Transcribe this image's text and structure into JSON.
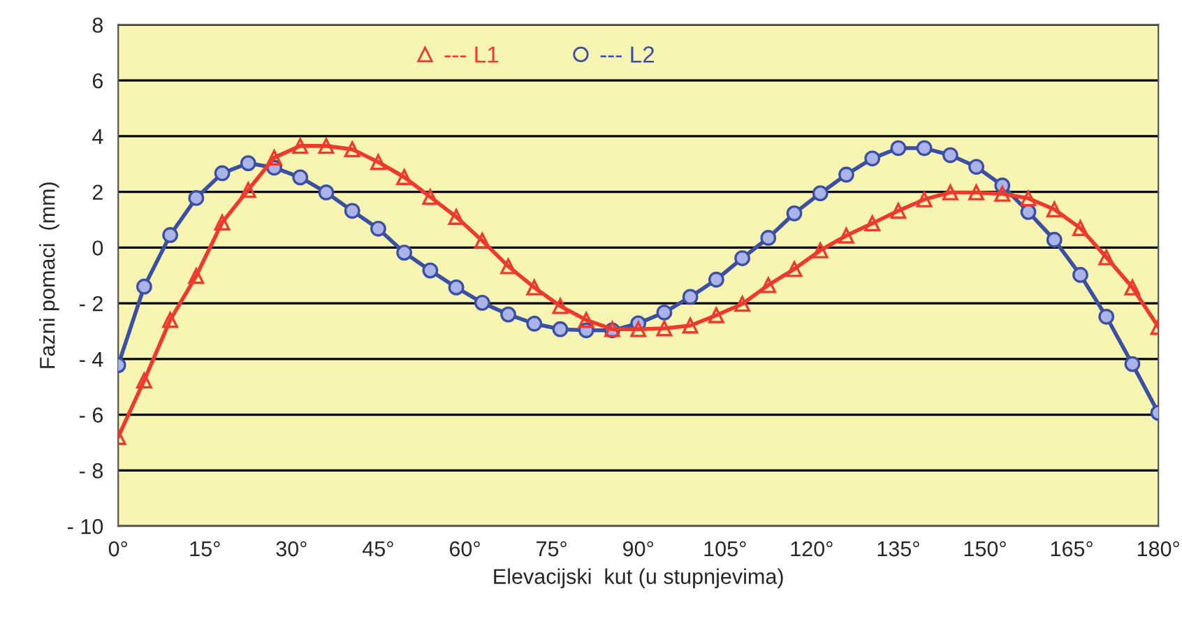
{
  "chart_data": {
    "type": "line",
    "xlabel": "Elevacijski  kut (u stupnjevima)",
    "ylabel": "Fazni pomaci  (mm)",
    "x": [
      0,
      4.5,
      9,
      13.5,
      18,
      22.5,
      27,
      31.5,
      36,
      40.5,
      45,
      49.5,
      54,
      58.5,
      63,
      67.5,
      72,
      76.5,
      81,
      85.5,
      90,
      94.5,
      99,
      103.5,
      108,
      112.5,
      117,
      121.5,
      126,
      130.5,
      135,
      139.5,
      144,
      148.5,
      153,
      157.5,
      162,
      166.5,
      171,
      175.5,
      180
    ],
    "series": [
      {
        "name": "--- L1",
        "color": "#ee3a2c",
        "marker": "triangle",
        "values": [
          -6.8,
          -4.77,
          -2.6,
          -1.02,
          0.9,
          2.07,
          3.23,
          3.65,
          3.65,
          3.53,
          3.07,
          2.53,
          1.82,
          1.1,
          0.25,
          -0.67,
          -1.43,
          -2.1,
          -2.6,
          -2.93,
          -2.93,
          -2.9,
          -2.8,
          -2.43,
          -2.02,
          -1.35,
          -0.77,
          -0.1,
          0.43,
          0.87,
          1.32,
          1.73,
          1.98,
          1.98,
          1.93,
          1.77,
          1.37,
          0.7,
          -0.35,
          -1.43,
          -2.85
        ]
      },
      {
        "name": "--- L2",
        "color": "#3b4fa3",
        "marker": "circle",
        "values": [
          -4.22,
          -1.4,
          0.45,
          1.78,
          2.67,
          3.03,
          2.87,
          2.52,
          1.98,
          1.32,
          0.68,
          -0.18,
          -0.82,
          -1.43,
          -1.98,
          -2.4,
          -2.73,
          -2.93,
          -2.97,
          -2.97,
          -2.72,
          -2.33,
          -1.77,
          -1.15,
          -0.38,
          0.35,
          1.23,
          1.95,
          2.62,
          3.2,
          3.57,
          3.57,
          3.32,
          2.9,
          2.23,
          1.28,
          0.28,
          -0.98,
          -2.48,
          -4.18,
          -5.93
        ]
      }
    ],
    "xlim": [
      0,
      180
    ],
    "xticks": [
      {
        "value": 0,
        "label": "0°"
      },
      {
        "value": 15,
        "label": "15°"
      },
      {
        "value": 30,
        "label": "30°"
      },
      {
        "value": 45,
        "label": "45°"
      },
      {
        "value": 60,
        "label": "60°"
      },
      {
        "value": 75,
        "label": "75°"
      },
      {
        "value": 90,
        "label": "90°"
      },
      {
        "value": 105,
        "label": "105°"
      },
      {
        "value": 120,
        "label": "120°"
      },
      {
        "value": 135,
        "label": "135°"
      },
      {
        "value": 150,
        "label": "150°"
      },
      {
        "value": 165,
        "label": "165°"
      },
      {
        "value": 180,
        "label": "180°"
      }
    ],
    "ylim": [
      -10,
      8
    ],
    "yticks": [
      {
        "value": -10,
        "label": "- 10"
      },
      {
        "value": -8,
        "label": "- 8"
      },
      {
        "value": -6,
        "label": "- 6"
      },
      {
        "value": -4,
        "label": "- 4"
      },
      {
        "value": -2,
        "label": "- 2"
      },
      0,
      2,
      4,
      6,
      8
    ],
    "grid": "y",
    "legend": "top",
    "line_style": "solid"
  }
}
